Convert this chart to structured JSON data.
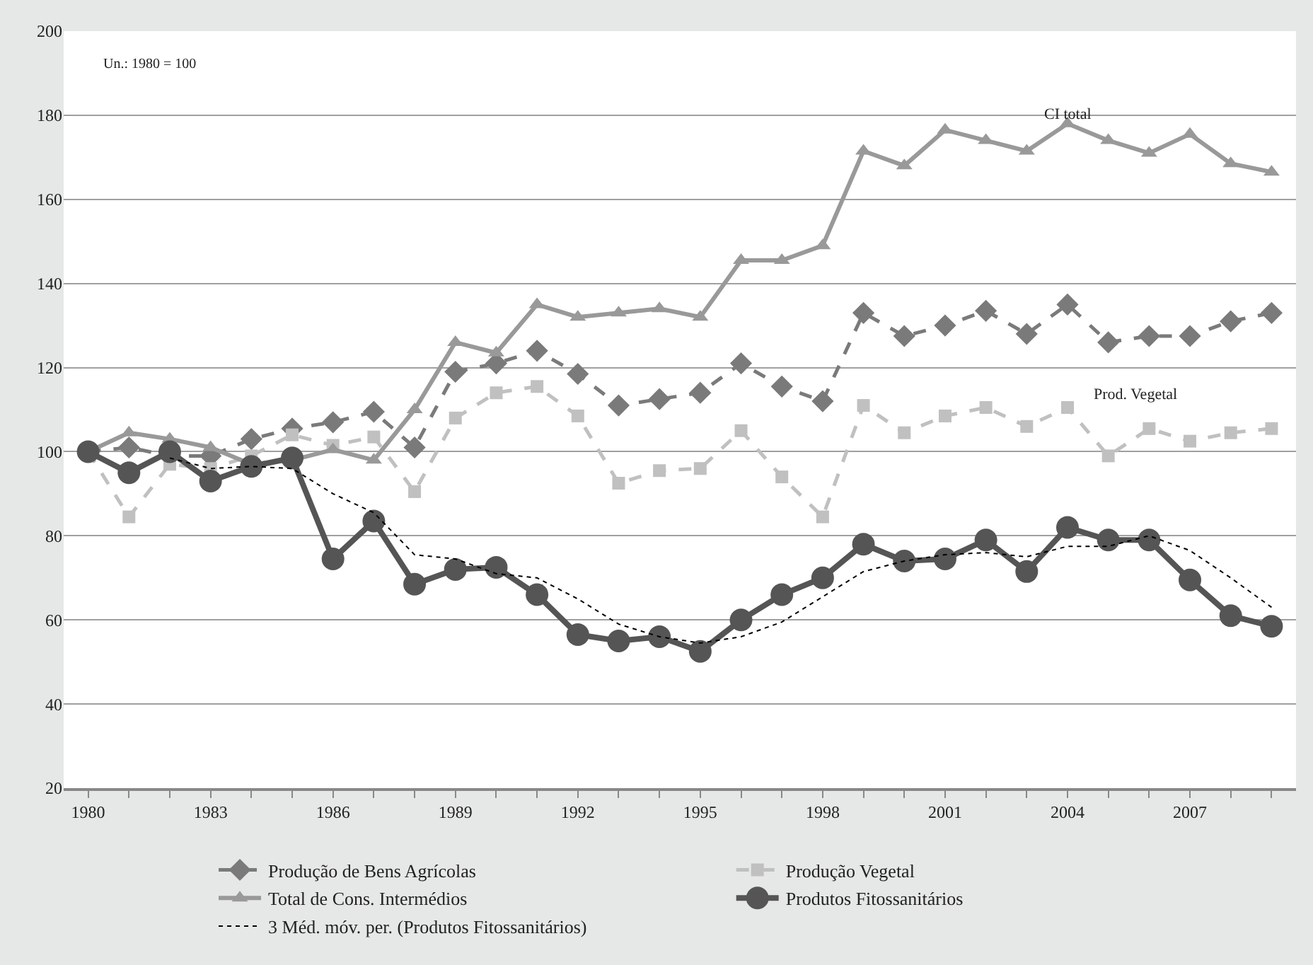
{
  "chart_data": {
    "type": "line",
    "x": [
      1980,
      1981,
      1982,
      1983,
      1984,
      1985,
      1986,
      1987,
      1988,
      1989,
      1990,
      1991,
      1992,
      1993,
      1994,
      1995,
      1996,
      1997,
      1998,
      1999,
      2000,
      2001,
      2002,
      2003,
      2004,
      2005,
      2006,
      2007,
      2008,
      2009
    ],
    "series": [
      {
        "name": "Produção de Bens Agrícolas",
        "color": "#7a7a7a",
        "marker": "diamond",
        "line_style": "dashed",
        "values": [
          100,
          101,
          99,
          99,
          103,
          105.5,
          107,
          109.5,
          101,
          119,
          121,
          124,
          118.5,
          111,
          112.5,
          114,
          121,
          115.5,
          112,
          133,
          127.5,
          130,
          133.5,
          128,
          135,
          126,
          127.5,
          127.5,
          131,
          133
        ]
      },
      {
        "name": "Produção Vegetal",
        "color": "#c0c0c0",
        "marker": "square",
        "line_style": "dashed",
        "values": [
          100,
          84.5,
          97,
          96,
          99,
          104,
          101.5,
          103.5,
          90.5,
          108,
          114,
          115.5,
          108.5,
          92.5,
          95.5,
          96,
          105,
          94,
          84.5,
          111,
          104.5,
          108.5,
          110.5,
          106,
          110.5,
          99,
          105.5,
          102.5,
          104.5,
          105.5
        ]
      },
      {
        "name": "Total de Cons. Intermédios",
        "color": "#999999",
        "marker": "triangle",
        "line_style": "solid",
        "values": [
          100,
          104.5,
          103,
          101,
          97,
          98,
          100.5,
          98,
          110,
          126,
          123.5,
          135,
          132,
          133,
          134,
          132,
          145.5,
          145.5,
          149,
          171.5,
          168,
          176.5,
          174,
          171.5,
          178,
          174,
          171,
          175.5,
          168.5,
          166.5
        ]
      },
      {
        "name": "Produtos Fitossanitários",
        "color": "#555555",
        "marker": "circle",
        "line_style": "solid",
        "values": [
          100,
          95,
          100,
          93,
          96.5,
          98.5,
          74.5,
          83.5,
          68.5,
          72,
          72.5,
          66,
          56.5,
          55,
          56,
          52.5,
          60,
          66,
          70,
          78,
          74,
          74.5,
          79,
          71.5,
          82,
          79,
          79,
          69.5,
          61,
          58.5
        ]
      },
      {
        "name": "3 Méd. móv. per. (Produtos Fitossanitários)",
        "color": "#000000",
        "marker": "none",
        "line_style": "dotted",
        "values": [
          null,
          null,
          98.5,
          96,
          96.5,
          96,
          90,
          85.5,
          75.5,
          74.5,
          71,
          70,
          65,
          59,
          56,
          54.5,
          56,
          59.5,
          65.5,
          71.5,
          74,
          75.5,
          76,
          75,
          77.5,
          77.5,
          80,
          76.5,
          70,
          63
        ]
      }
    ],
    "xlim": [
      1979.4,
      2009.6
    ],
    "xticks": [
      1980,
      {
        "value": 1981,
        "label": null
      },
      {
        "value": 1982,
        "label": null
      },
      1983,
      {
        "value": 1984,
        "label": null
      },
      {
        "value": 1985,
        "label": null
      },
      1986,
      {
        "value": 1987,
        "label": null
      },
      {
        "value": 1988,
        "label": null
      },
      1989,
      {
        "value": 1990,
        "label": null
      },
      {
        "value": 1991,
        "label": null
      },
      1992,
      {
        "value": 1993,
        "label": null
      },
      {
        "value": 1994,
        "label": null
      },
      1995,
      {
        "value": 1996,
        "label": null
      },
      {
        "value": 1997,
        "label": null
      },
      1998,
      {
        "value": 1999,
        "label": null
      },
      {
        "value": 2000,
        "label": null
      },
      2001,
      {
        "value": 2002,
        "label": null
      },
      {
        "value": 2003,
        "label": null
      },
      2004,
      {
        "value": 2005,
        "label": null
      },
      {
        "value": 2006,
        "label": null
      },
      2007,
      {
        "value": 2008,
        "label": null
      },
      {
        "value": 2009,
        "label": null
      }
    ],
    "ylim": [
      20,
      200
    ],
    "yticks": [
      20,
      40,
      60,
      80,
      100,
      120,
      140,
      160,
      180,
      200
    ],
    "grid": "y",
    "legend": "bottom",
    "annotations": [
      "Un.: 1980 = 100",
      "CI total",
      "Prod. Vegetal"
    ]
  }
}
